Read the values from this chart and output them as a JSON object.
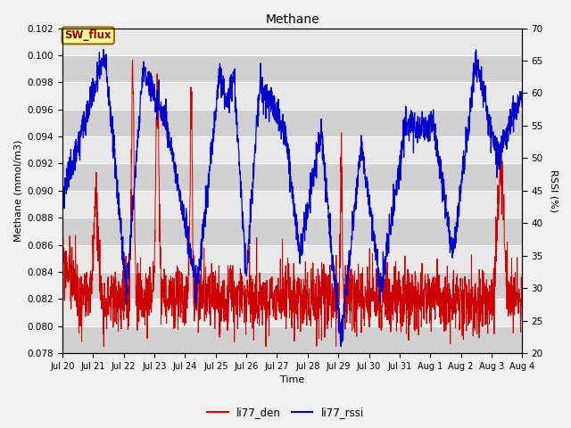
{
  "title": "Methane",
  "xlabel": "Time",
  "ylabel_left": "Methane (mmol/m3)",
  "ylabel_right": "RSSI (%)",
  "ylim_left": [
    0.078,
    0.102
  ],
  "ylim_right": [
    20,
    70
  ],
  "yticks_left": [
    0.078,
    0.08,
    0.082,
    0.084,
    0.086,
    0.088,
    0.09,
    0.092,
    0.094,
    0.096,
    0.098,
    0.1,
    0.102
  ],
  "yticks_right": [
    20,
    25,
    30,
    35,
    40,
    45,
    50,
    55,
    60,
    65,
    70
  ],
  "color_den": "#cc0000",
  "color_rssi": "#0000cc",
  "legend_labels": [
    "li77_den",
    "li77_rssi"
  ],
  "annotation_text": "SW_flux",
  "annotation_bg": "#ffff99",
  "annotation_border": "#996600",
  "fig_bg": "#f0f0f0",
  "plot_bg_light": "#e8e8e8",
  "plot_bg_dark": "#d0d0d0",
  "grid_color": "#ffffff",
  "n_points": 2000
}
